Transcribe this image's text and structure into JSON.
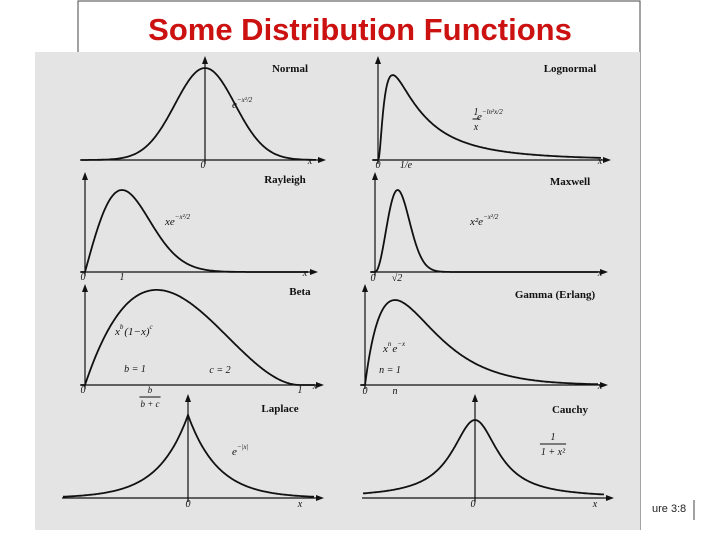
{
  "title": "Some Distribution Functions",
  "panels": [
    {
      "name": "Normal",
      "formula": [
        {
          "text": "e"
        },
        {
          "sup": "−x²/2"
        }
      ],
      "ticks": [
        "0",
        "x"
      ]
    },
    {
      "name": "Lognormal",
      "formula": [
        {
          "num": "1",
          "den": "x"
        },
        {
          "text": " e"
        },
        {
          "sup": "−ln²x/2"
        }
      ],
      "ticks": [
        "0",
        "1/e",
        "x"
      ]
    },
    {
      "name": "Rayleigh",
      "formula": [
        {
          "text": "xe"
        },
        {
          "sup": "−x²/2"
        }
      ],
      "ticks": [
        "0",
        "1",
        "x"
      ]
    },
    {
      "name": "Maxwell",
      "formula": [
        {
          "text": "x²e"
        },
        {
          "sup": "−x²/2"
        }
      ],
      "ticks": [
        "0",
        "√2",
        "x"
      ]
    },
    {
      "name": "Beta",
      "formula": [
        {
          "text": "x"
        },
        {
          "sup": "b"
        },
        {
          "text": "(1−x)"
        },
        {
          "sup": "c"
        }
      ],
      "ticks": [
        "0",
        {
          "num": "b",
          "den": "b + c"
        },
        "1",
        "x"
      ],
      "notes": [
        "b = 1",
        "c = 2"
      ]
    },
    {
      "name": "Gamma (Erlang)",
      "formula": [
        {
          "text": "x"
        },
        {
          "sup": "n"
        },
        {
          "text": "e"
        },
        {
          "sup": "−x"
        }
      ],
      "ticks": [
        "0",
        "n",
        "x"
      ],
      "notes": [
        "n = 1"
      ]
    },
    {
      "name": "Laplace",
      "formula": [
        {
          "text": "e"
        },
        {
          "sup": "−|x|"
        }
      ],
      "ticks": [
        "0",
        "x"
      ]
    },
    {
      "name": "Cauchy",
      "formula": [
        {
          "num": "1",
          "den": "1 + x²"
        }
      ],
      "ticks": [
        "0",
        "x"
      ]
    }
  ],
  "footer": {
    "label": "ure 3:",
    "page": "8"
  }
}
